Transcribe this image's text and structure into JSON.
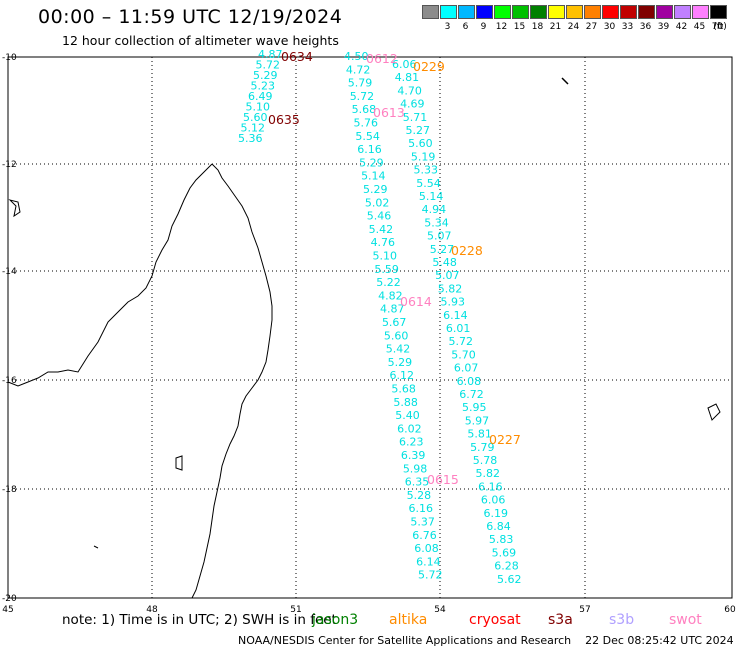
{
  "title": "00:00 – 11:59 UTC 12/19/2024",
  "subtitle": "12 hour collection of altimeter wave heights",
  "legend": {
    "unit": "(ft)",
    "levels": [
      "3",
      "6",
      "9",
      "12",
      "15",
      "18",
      "21",
      "24",
      "27",
      "30",
      "33",
      "36",
      "39",
      "42",
      "45",
      "70"
    ],
    "colors": [
      "#8c8c8c",
      "#00ffff",
      "#00b8ff",
      "#0000ff",
      "#00ff00",
      "#00c000",
      "#008000",
      "#ffff00",
      "#ffc000",
      "#ff8000",
      "#ff0000",
      "#c00000",
      "#800000",
      "#a000a0",
      "#c080ff",
      "#ff80ff",
      "#000000"
    ]
  },
  "axes": {
    "lat_labels": [
      "-10",
      "-12",
      "-14",
      "-16",
      "-18",
      "-20"
    ],
    "lon_labels": [
      "45",
      "48",
      "51",
      "54",
      "57",
      "60"
    ]
  },
  "passes": [
    {
      "label": "0634",
      "color": "#800000"
    },
    {
      "label": "0612",
      "color": "#ff80c0"
    },
    {
      "label": "0229",
      "color": "#ff8c00"
    },
    {
      "label": "0613",
      "color": "#ff80c0"
    },
    {
      "label": "0635",
      "color": "#800000"
    },
    {
      "label": "0228",
      "color": "#ff8c00"
    },
    {
      "label": "0614",
      "color": "#ff80c0"
    },
    {
      "label": "0227",
      "color": "#ff8c00"
    },
    {
      "label": "0615",
      "color": "#ff80c0"
    }
  ],
  "tracks": [
    {
      "values": [
        "4.87",
        "5.72",
        "5.29",
        "5.23",
        "6.49",
        "5.10",
        "5.60",
        "5.12",
        "5.36"
      ]
    },
    {
      "values": [
        "4.50",
        "4.72",
        "5.79",
        "5.72",
        "5.68",
        "5.76",
        "5.54",
        "6.16",
        "5.29",
        "5.14",
        "5.29",
        "5.02",
        "5.46",
        "5.42",
        "4.76",
        "5.10",
        "5.59",
        "5.22",
        "4.82",
        "4.87",
        "5.67",
        "5.60",
        "5.42",
        "5.29",
        "6.12",
        "5.68",
        "5.88",
        "5.40",
        "6.02",
        "6.23",
        "6.39",
        "5.98",
        "6.35",
        "5.28",
        "6.16",
        "5.37",
        "6.76",
        "6.08",
        "6.14",
        "5.72"
      ]
    },
    {
      "values": [
        "6.06",
        "4.81",
        "4.70",
        "4.69",
        "5.71",
        "5.27",
        "5.60",
        "5.19",
        "5.33",
        "5.54",
        "5.14",
        "4.94",
        "5.34",
        "5.07",
        "5.27",
        "5.48",
        "5.07",
        "5.82",
        "5.93",
        "6.14",
        "6.01",
        "5.72",
        "5.70",
        "6.07",
        "6.08",
        "6.72",
        "5.95",
        "5.97",
        "5.81",
        "5.79",
        "5.78",
        "5.82",
        "6.16",
        "6.06",
        "6.19",
        "6.84",
        "5.83",
        "5.69",
        "6.28",
        "5.62"
      ]
    }
  ],
  "footer": {
    "note": "note: 1) Time is in UTC; 2) SWH is in feet",
    "missions": [
      {
        "name": "jason3",
        "color": "#008000"
      },
      {
        "name": "altika",
        "color": "#ff8c00"
      },
      {
        "name": "cryosat",
        "color": "#ff0000"
      },
      {
        "name": "s3a",
        "color": "#800000"
      },
      {
        "name": "s3b",
        "color": "#b0a0ff"
      },
      {
        "name": "swot",
        "color": "#ff80c0"
      }
    ],
    "credit": "NOAA/NESDIS Center for Satellite Applications and Research    22 Dec 08:25:42 UTC 2024"
  }
}
